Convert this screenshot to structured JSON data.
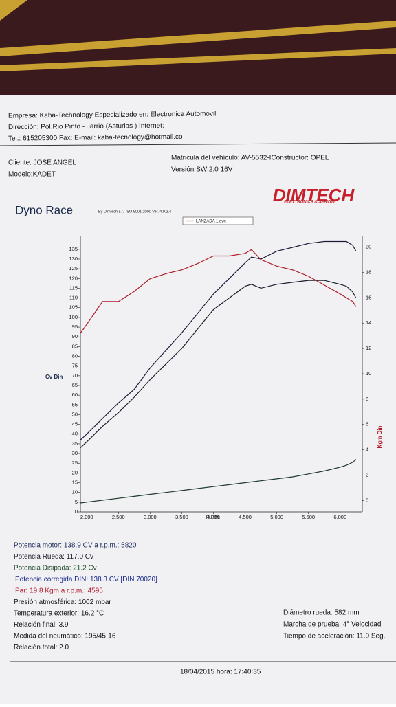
{
  "header": {
    "lines": [
      "Empresa: Kaba-Technology   Especializado en: Electronica Automovil",
      "Dirección: Pol.Rio Pinto - Jarrio (Asturias ) Internet:",
      "Tel.: 615205300 Fax:   E-mail: kaba-tecnology@hotmail.co"
    ]
  },
  "client": {
    "left": [
      "Cliente:    JOSE ANGEL",
      "Modelo:KADET"
    ],
    "right": [
      "Matricula del vehículo: AV-5532-IConstructor: OPEL",
      "Versión SW:2.0 16V"
    ]
  },
  "logo": {
    "name": "DIMTECH",
    "tagline": "ELETTRONICA & SERVIZI"
  },
  "chart_data": {
    "type": "line",
    "title": "Dyno Race",
    "subtitle": "By Dimtech s.r.l  ISO 9001:2000  Ver. 4.0.2.4",
    "legend": "LANZADA 1.dyn",
    "x_label": "R.P.M.",
    "y_label": "Cv Din",
    "y2_label": "Kgm Din",
    "x": [
      1900,
      2000,
      2250,
      2500,
      2750,
      3000,
      3250,
      3500,
      3750,
      4000,
      4250,
      4500,
      4600,
      4750,
      5000,
      5250,
      5500,
      5750,
      6000,
      6100,
      6200,
      6250
    ],
    "series": [
      {
        "color": "#1a1a3a",
        "values": [
          37,
          40,
          48,
          56,
          63,
          74,
          83,
          92,
          102,
          112,
          120,
          128,
          131,
          130,
          134,
          136,
          138,
          139,
          139,
          139,
          137,
          134
        ]
      },
      {
        "color": "#1a1a2a",
        "values": [
          33,
          36,
          44,
          51,
          59,
          68,
          76,
          84,
          94,
          104,
          110,
          116,
          117,
          115,
          117,
          118,
          119,
          119,
          117,
          116,
          113,
          110
        ]
      },
      {
        "color": "#b01c2a",
        "axis": "y2",
        "values": [
          13.2,
          13.9,
          15.7,
          15.7,
          16.5,
          17.5,
          17.9,
          18.2,
          18.7,
          19.3,
          19.3,
          19.5,
          19.8,
          19.0,
          18.5,
          18.2,
          17.7,
          17.0,
          16.3,
          16.0,
          15.7,
          15.3
        ]
      },
      {
        "color": "#1d3a2a",
        "values": [
          4.6,
          5,
          6,
          7,
          8,
          9,
          10,
          11,
          12,
          13,
          14,
          15,
          15.4,
          16,
          17,
          18,
          19.5,
          21,
          23,
          24,
          25.5,
          27
        ]
      }
    ],
    "xlim": [
      1900,
      6350
    ],
    "xticks": [
      {
        "value": 2000,
        "label": "2.000"
      },
      {
        "value": 2500,
        "label": "2.500"
      },
      {
        "value": 3000,
        "label": "3.000"
      },
      {
        "value": 3500,
        "label": "3.500"
      },
      {
        "value": 4000,
        "label": "4.000"
      },
      {
        "value": 4500,
        "label": "4.500"
      },
      {
        "value": 5000,
        "label": "5.000"
      },
      {
        "value": 5500,
        "label": "5.500"
      },
      {
        "value": 6000,
        "label": "6.000"
      }
    ],
    "ylim": [
      0,
      142
    ],
    "yticks": [
      0,
      5,
      10,
      15,
      20,
      25,
      30,
      35,
      40,
      45,
      50,
      55,
      60,
      65,
      70,
      75,
      80,
      85,
      90,
      95,
      100,
      105,
      110,
      115,
      120,
      125,
      130,
      135
    ],
    "y2lim": [
      -0.9,
      20.9
    ],
    "y2ticks": [
      0,
      2,
      4,
      6,
      8,
      10,
      12,
      14,
      16,
      18,
      20
    ]
  },
  "results": {
    "left": [
      {
        "text": "Potencia motor:  138.9 CV a r.p.m.: 5820",
        "color": "#1a2a5a"
      },
      {
        "text": "Potencia Rueda:  117.0 Cv",
        "color": "#1a1a2a"
      },
      {
        "text": "Potencia Disipada:   21.2 Cv",
        "color": "#1d4a2a"
      },
      {
        "text": "Potencia corregida DIN:  138.3 CV  [DIN 70020]",
        "color": "#1a2a8a"
      },
      {
        "text": "Par:  19.8  Kgm a r.p.m.: 4595",
        "color": "#b01c2a"
      },
      {
        "text": "Presión atmosférica:    1002 mbar",
        "color": "#111111"
      },
      {
        "text": "Temperatura exterior:    16.2 °C",
        "color": "#111111"
      },
      {
        "text": "Relación final:  3.9",
        "color": "#111111"
      },
      {
        "text": "Medida del neumático:   195/45-16",
        "color": "#111111"
      },
      {
        "text": "Relación total:  2.0",
        "color": "#111111"
      }
    ],
    "right": [
      "Diámetro rueda:  582 mm",
      "Marcha de prueba:  4° Velocidad",
      "Tiempo de aceleración:  11.0 Seg."
    ]
  },
  "footer": "18/04/2015   hora:   17:40:35"
}
